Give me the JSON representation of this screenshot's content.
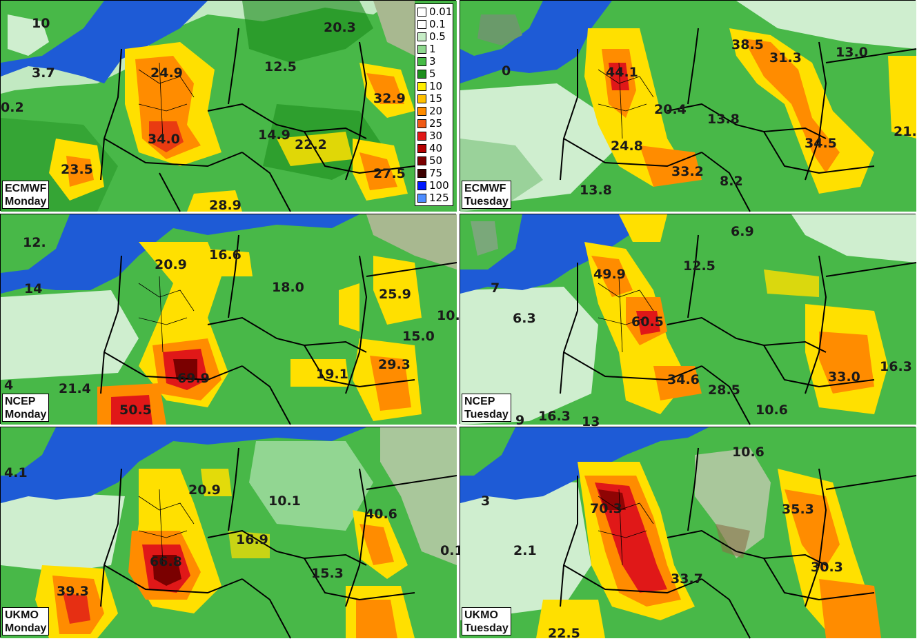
{
  "legend": {
    "items": [
      {
        "label": "0.01",
        "color": "#ffffff"
      },
      {
        "label": "0.1",
        "color": "#ffffff"
      },
      {
        "label": "0.5",
        "color": "#c6ecc6"
      },
      {
        "label": "1",
        "color": "#8fd88f"
      },
      {
        "label": "3",
        "color": "#46bb46"
      },
      {
        "label": "5",
        "color": "#1e8f1e"
      },
      {
        "label": "10",
        "color": "#ffee00"
      },
      {
        "label": "15",
        "color": "#ffc000"
      },
      {
        "label": "20",
        "color": "#ff8c00"
      },
      {
        "label": "25",
        "color": "#f05a16"
      },
      {
        "label": "30",
        "color": "#e01818"
      },
      {
        "label": "40",
        "color": "#b40000"
      },
      {
        "label": "50",
        "color": "#7a0000"
      },
      {
        "label": "75",
        "color": "#3c0000"
      },
      {
        "label": "100",
        "color": "#0018ff"
      },
      {
        "label": "125",
        "color": "#4d8dff"
      }
    ]
  },
  "colors": {
    "sea": "#1e5bd6",
    "land_light": "#cfeecf",
    "land_green": "#48b848",
    "land_dark": "#1a8a1a",
    "yellow": "#ffe000",
    "orange": "#ff8c00",
    "red": "#e01818",
    "dark_red": "#7a0000"
  },
  "panels": [
    {
      "model": "ECMWF",
      "day": "Monday",
      "values": [
        "10",
        "3.7",
        "0.2",
        "20.3",
        "12.5",
        "24.9",
        "32.9",
        "34.0",
        "14.9",
        "22.2",
        "23.5",
        "27.5",
        "28.9"
      ]
    },
    {
      "model": "ECMWF",
      "day": "Tuesday",
      "values": [
        "0",
        "38.5",
        "31.3",
        "13.0",
        "44.1",
        "20.4",
        "13.8",
        "21.",
        "24.8",
        "34.5",
        "33.2",
        "8.2",
        "13.8"
      ]
    },
    {
      "model": "NCEP",
      "day": "Monday",
      "values": [
        "12.",
        "16.6",
        "20.9",
        "14",
        "18.0",
        "25.9",
        "10.",
        "15.0",
        "29.3",
        "19.1",
        "69.9",
        "4",
        "21.4",
        "50.5"
      ]
    },
    {
      "model": "NCEP",
      "day": "Tuesday",
      "values": [
        "6.9",
        "49.9",
        "12.5",
        "7",
        "6.3",
        "60.5",
        "16.3",
        "34.6",
        "33.0",
        "28.5",
        "10.6",
        "16.3",
        "9",
        "13"
      ]
    },
    {
      "model": "UKMO",
      "day": "Monday",
      "values": [
        "4.1",
        "20.9",
        "10.1",
        "40.6",
        "16.9",
        "0.1",
        "66.8",
        "15.3",
        "39.3"
      ]
    },
    {
      "model": "UKMO",
      "day": "Tuesday",
      "values": [
        "10.6",
        "70.3",
        "3",
        "35.3",
        "2.1",
        "33.7",
        "30.3",
        "22.5"
      ]
    }
  ]
}
